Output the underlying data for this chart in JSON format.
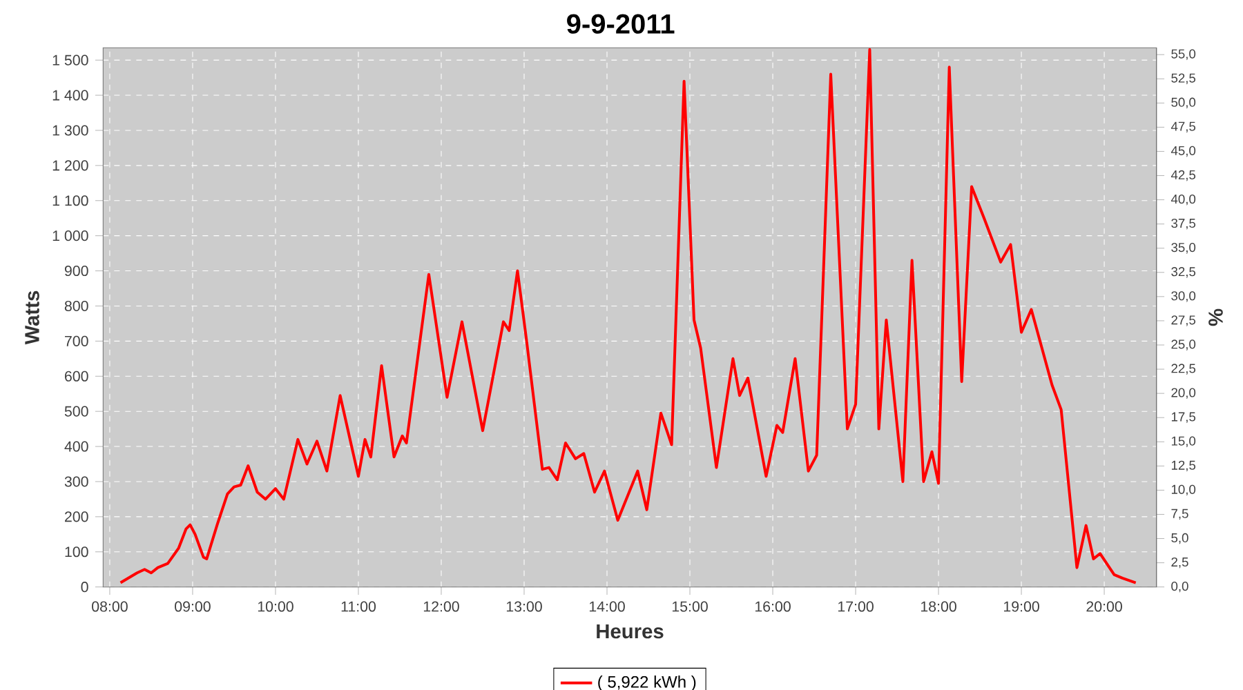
{
  "chart_data": {
    "type": "line",
    "title": "9-9-2011",
    "xlabel": "Heures",
    "ylabel": "Watts",
    "y2label": "%",
    "x": [
      8.13,
      8.33,
      8.42,
      8.5,
      8.58,
      8.7,
      8.83,
      8.92,
      8.97,
      9.03,
      9.13,
      9.17,
      9.3,
      9.42,
      9.5,
      9.58,
      9.67,
      9.78,
      9.88,
      10.0,
      10.1,
      10.27,
      10.38,
      10.5,
      10.62,
      10.78,
      11.0,
      11.08,
      11.15,
      11.28,
      11.43,
      11.53,
      11.58,
      11.85,
      12.07,
      12.25,
      12.5,
      12.75,
      12.82,
      12.92,
      13.03,
      13.22,
      13.3,
      13.4,
      13.5,
      13.62,
      13.72,
      13.85,
      13.97,
      14.13,
      14.37,
      14.48,
      14.65,
      14.78,
      14.93,
      15.05,
      15.13,
      15.32,
      15.52,
      15.6,
      15.7,
      15.92,
      16.05,
      16.12,
      16.27,
      16.43,
      16.53,
      16.7,
      16.9,
      17.0,
      17.17,
      17.28,
      17.37,
      17.57,
      17.68,
      17.82,
      17.92,
      18.0,
      18.13,
      18.28,
      18.4,
      18.55,
      18.75,
      18.87,
      19.0,
      19.12,
      19.37,
      19.48,
      19.67,
      19.78,
      19.87,
      19.95,
      20.12,
      20.22,
      20.38
    ],
    "series": [
      {
        "name": "( 5,922 kWh )",
        "color": "#ff0000",
        "values": [
          12,
          40,
          50,
          40,
          55,
          67,
          110,
          165,
          177,
          150,
          85,
          80,
          180,
          265,
          285,
          290,
          345,
          270,
          250,
          280,
          250,
          420,
          350,
          415,
          330,
          545,
          315,
          420,
          370,
          630,
          370,
          430,
          410,
          890,
          540,
          755,
          445,
          755,
          730,
          900,
          700,
          335,
          340,
          305,
          410,
          365,
          380,
          270,
          330,
          190,
          330,
          220,
          495,
          405,
          1440,
          760,
          680,
          340,
          650,
          545,
          595,
          315,
          460,
          440,
          650,
          330,
          375,
          1460,
          450,
          520,
          1530,
          450,
          760,
          300,
          930,
          300,
          385,
          295,
          1480,
          585,
          1140,
          1050,
          925,
          975,
          725,
          790,
          575,
          505,
          55,
          175,
          80,
          95,
          35,
          25,
          12
        ]
      }
    ],
    "xlim": [
      7.92,
      20.63
    ],
    "ylim": [
      0,
      1535
    ],
    "y2lim": [
      0,
      55.7
    ],
    "xticks": [
      {
        "value": 8,
        "label": "08:00"
      },
      {
        "value": 9,
        "label": "09:00"
      },
      {
        "value": 10,
        "label": "10:00"
      },
      {
        "value": 11,
        "label": "11:00"
      },
      {
        "value": 12,
        "label": "12:00"
      },
      {
        "value": 13,
        "label": "13:00"
      },
      {
        "value": 14,
        "label": "14:00"
      },
      {
        "value": 15,
        "label": "15:00"
      },
      {
        "value": 16,
        "label": "16:00"
      },
      {
        "value": 17,
        "label": "17:00"
      },
      {
        "value": 18,
        "label": "18:00"
      },
      {
        "value": 19,
        "label": "19:00"
      },
      {
        "value": 20,
        "label": "20:00"
      }
    ],
    "yticks": [
      0,
      100,
      200,
      300,
      400,
      500,
      600,
      700,
      800,
      900,
      {
        "value": 1000,
        "label": "1 000"
      },
      {
        "value": 1100,
        "label": "1 100"
      },
      {
        "value": 1200,
        "label": "1 200"
      },
      {
        "value": 1300,
        "label": "1 300"
      },
      {
        "value": 1400,
        "label": "1 400"
      },
      {
        "value": 1500,
        "label": "1 500"
      }
    ],
    "y2ticks": [
      {
        "value": 0,
        "label": "0,0"
      },
      {
        "value": 2.5,
        "label": "2,5"
      },
      {
        "value": 5,
        "label": "5,0"
      },
      {
        "value": 7.5,
        "label": "7,5"
      },
      {
        "value": 10,
        "label": "10,0"
      },
      {
        "value": 12.5,
        "label": "12,5"
      },
      {
        "value": 15,
        "label": "15,0"
      },
      {
        "value": 17.5,
        "label": "17,5"
      },
      {
        "value": 20,
        "label": "20,0"
      },
      {
        "value": 22.5,
        "label": "22,5"
      },
      {
        "value": 25,
        "label": "25,0"
      },
      {
        "value": 27.5,
        "label": "27,5"
      },
      {
        "value": 30,
        "label": "30,0"
      },
      {
        "value": 32.5,
        "label": "32,5"
      },
      {
        "value": 35,
        "label": "35,0"
      },
      {
        "value": 37.5,
        "label": "37,5"
      },
      {
        "value": 40,
        "label": "40,0"
      },
      {
        "value": 42.5,
        "label": "42,5"
      },
      {
        "value": 45,
        "label": "45,0"
      },
      {
        "value": 47.5,
        "label": "47,5"
      },
      {
        "value": 50,
        "label": "50,0"
      },
      {
        "value": 52.5,
        "label": "52,5"
      },
      {
        "value": 55,
        "label": "55,0"
      }
    ],
    "grid": true,
    "legend": "bottom"
  }
}
